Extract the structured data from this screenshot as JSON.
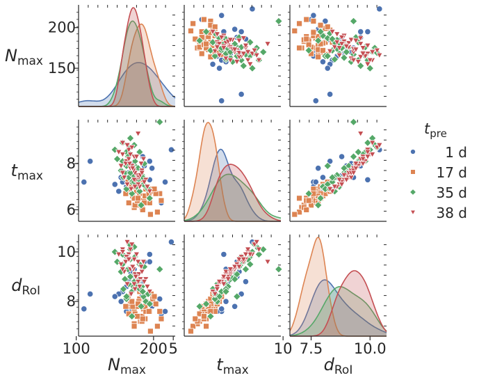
{
  "chart_data": {
    "type": "scatter",
    "variables": [
      {
        "key": "N",
        "label": "N",
        "sub": "max",
        "range": [
          103,
          228
        ],
        "ticks": [
          150,
          200
        ],
        "bottom_ticks": [
          100,
          200
        ]
      },
      {
        "key": "t",
        "label": "t",
        "sub": "max",
        "range": [
          5.5,
          9.9
        ],
        "ticks": [
          6,
          8
        ],
        "bottom_ticks": [
          5,
          10
        ]
      },
      {
        "key": "d",
        "label": "d",
        "sub": "RoI",
        "range": [
          6.6,
          10.7
        ],
        "ticks": [
          8,
          10
        ],
        "bottom_ticks": [
          7.5,
          10.0
        ]
      }
    ],
    "bottom_ticks_display": [
      [
        "100",
        "200"
      ],
      [
        "5",
        "10"
      ],
      [
        "7.5",
        "10.0"
      ]
    ],
    "legend": {
      "title": "t",
      "title_sub": "pre",
      "placement": "right",
      "entries": [
        "1 d",
        "17 d",
        "35 d",
        "38 d"
      ]
    },
    "series": [
      {
        "name": "1 d",
        "marker": "circle",
        "color": "#4C72B0",
        "points": [
          [
            223,
            8.6,
            10.4
          ],
          [
            188,
            7.9,
            9.6
          ],
          [
            175,
            7.4,
            9.3
          ],
          [
            168,
            7.6,
            8.9
          ],
          [
            160,
            7.2,
            8.4
          ],
          [
            183,
            7.1,
            8.1
          ],
          [
            200,
            6.9,
            7.9
          ],
          [
            208,
            6.7,
            8.1
          ],
          [
            210,
            6.3,
            7.5
          ],
          [
            178,
            7.5,
            8.8
          ],
          [
            155,
            6.8,
            8.3
          ],
          [
            165,
            7.4,
            8.6
          ],
          [
            172,
            7.2,
            7.7
          ],
          [
            150,
            7.1,
            8.2
          ],
          [
            195,
            7.3,
            9.9
          ],
          [
            185,
            7.1,
            8.2
          ],
          [
            215,
            7.2,
            7.6
          ],
          [
            170,
            8.0,
            9.2
          ],
          [
            118,
            8.1,
            8.3
          ],
          [
            198,
            7.8,
            7.8
          ],
          [
            180,
            6.9,
            8.5
          ],
          [
            165,
            7.0,
            7.6
          ],
          [
            190,
            6.6,
            8.0
          ],
          [
            176,
            7.9,
            9.0
          ],
          [
            202,
            6.8,
            7.9
          ],
          [
            186,
            8.3,
            8.8
          ],
          [
            158,
            7.4,
            8.0
          ],
          [
            195,
            8.1,
            9.6
          ],
          [
            110,
            7.2,
            7.7
          ]
        ]
      },
      {
        "name": "17 d",
        "marker": "square",
        "color": "#DD8452",
        "points": [
          [
            208,
            6.7,
            7.6
          ],
          [
            191,
            7.0,
            7.9
          ],
          [
            183,
            6.2,
            7.2
          ],
          [
            175,
            6.5,
            7.6
          ],
          [
            168,
            6.9,
            7.8
          ],
          [
            178,
            6.8,
            7.8
          ],
          [
            185,
            6.4,
            7.4
          ],
          [
            190,
            6.6,
            8.0
          ],
          [
            195,
            6.3,
            7.6
          ],
          [
            175,
            6.1,
            7.1
          ],
          [
            168,
            6.3,
            7.5
          ],
          [
            182,
            6.7,
            8.1
          ],
          [
            170,
            7.0,
            7.9
          ],
          [
            189,
            6.5,
            7.3
          ],
          [
            210,
            6.4,
            7.3
          ],
          [
            176,
            6.2,
            7.5
          ],
          [
            197,
            6.8,
            8.3
          ],
          [
            181,
            7.1,
            8.0
          ],
          [
            164,
            6.7,
            7.8
          ],
          [
            205,
            5.9,
            7.0
          ],
          [
            187,
            6.4,
            7.7
          ],
          [
            173,
            6.6,
            7.8
          ],
          [
            199,
            6.9,
            8.1
          ],
          [
            185,
            6.1,
            7.2
          ],
          [
            179,
            6.4,
            7.4
          ],
          [
            190,
            6.9,
            7.6
          ],
          [
            203,
            6.7,
            7.9
          ],
          [
            167,
            7.2,
            8.2
          ],
          [
            188,
            6.3,
            7.8
          ],
          [
            196,
            5.8,
            6.8
          ],
          [
            175,
            6.5,
            7.0
          ],
          [
            182,
            7.3,
            8.4
          ],
          [
            189,
            6.6,
            7.8
          ],
          [
            172,
            7.0,
            8.0
          ],
          [
            201,
            6.9,
            8.2
          ],
          [
            186,
            6.0,
            7.3
          ],
          [
            194,
            6.7,
            7.6
          ],
          [
            180,
            6.5,
            7.9
          ]
        ]
      },
      {
        "name": "35 d",
        "marker": "diamond",
        "color": "#55A868",
        "points": [
          [
            208,
            9.8,
            9.3
          ],
          [
            175,
            8.8,
            10.2
          ],
          [
            170,
            9.1,
            10.1
          ],
          [
            165,
            8.5,
            9.8
          ],
          [
            178,
            7.8,
            9.0
          ],
          [
            185,
            7.5,
            8.6
          ],
          [
            160,
            8.1,
            9.5
          ],
          [
            172,
            7.2,
            8.4
          ],
          [
            190,
            7.0,
            8.0
          ],
          [
            168,
            7.4,
            8.7
          ],
          [
            182,
            6.8,
            8.5
          ],
          [
            153,
            8.2,
            9.6
          ],
          [
            176,
            7.9,
            9.1
          ],
          [
            195,
            6.5,
            7.9
          ],
          [
            163,
            7.6,
            8.9
          ],
          [
            187,
            7.1,
            8.2
          ],
          [
            170,
            8.4,
            9.7
          ],
          [
            158,
            7.7,
            9.2
          ],
          [
            180,
            7.3,
            8.8
          ],
          [
            165,
            6.9,
            8.1
          ],
          [
            174,
            7.5,
            8.6
          ],
          [
            188,
            8.0,
            9.4
          ],
          [
            150,
            8.6,
            10.0
          ],
          [
            172,
            6.7,
            7.4
          ],
          [
            180,
            7.8,
            8.9
          ],
          [
            167,
            8.3,
            9.3
          ],
          [
            193,
            6.9,
            8.3
          ],
          [
            176,
            8.1,
            9.8
          ],
          [
            161,
            7.4,
            8.5
          ],
          [
            184,
            6.2,
            7.8
          ],
          [
            170,
            7.6,
            9.0
          ],
          [
            178,
            7.0,
            8.7
          ],
          [
            169,
            8.7,
            10.3
          ],
          [
            186,
            7.4,
            8.4
          ],
          [
            160,
            8.9,
            9.9
          ],
          [
            175,
            7.2,
            8.8
          ],
          [
            182,
            8.5,
            9.5
          ],
          [
            165,
            7.9,
            8.2
          ]
        ]
      },
      {
        "name": "38 d",
        "marker": "triangle",
        "color": "#C44E52",
        "points": [
          [
            180,
            9.3,
            9.6
          ],
          [
            160,
            8.9,
            10.1
          ],
          [
            168,
            8.6,
            9.9
          ],
          [
            175,
            8.3,
            9.7
          ],
          [
            172,
            7.9,
            9.4
          ],
          [
            185,
            7.7,
            9.2
          ],
          [
            165,
            8.1,
            9.8
          ],
          [
            178,
            7.5,
            9.0
          ],
          [
            190,
            7.3,
            8.9
          ],
          [
            170,
            7.8,
            9.3
          ],
          [
            182,
            7.0,
            8.6
          ],
          [
            160,
            8.4,
            10.0
          ],
          [
            176,
            7.6,
            9.1
          ],
          [
            195,
            6.8,
            8.4
          ],
          [
            164,
            8.0,
            9.6
          ],
          [
            188,
            7.2,
            8.8
          ],
          [
            172,
            8.7,
            10.3
          ],
          [
            158,
            7.9,
            9.5
          ],
          [
            181,
            7.4,
            9.1
          ],
          [
            166,
            7.1,
            8.7
          ],
          [
            174,
            7.7,
            9.3
          ],
          [
            187,
            8.2,
            9.6
          ],
          [
            155,
            8.5,
            9.9
          ],
          [
            171,
            6.9,
            8.3
          ],
          [
            183,
            7.5,
            8.9
          ],
          [
            169,
            8.0,
            9.7
          ],
          [
            192,
            7.0,
            8.6
          ],
          [
            178,
            8.3,
            9.9
          ],
          [
            162,
            7.4,
            9.2
          ],
          [
            180,
            7.1,
            8.8
          ],
          [
            173,
            7.8,
            9.4
          ],
          [
            177,
            7.3,
            9.0
          ],
          [
            166,
            8.8,
            10.4
          ],
          [
            185,
            7.6,
            9.2
          ],
          [
            168,
            8.2,
            9.7
          ],
          [
            176,
            7.0,
            8.5
          ],
          [
            184,
            8.0,
            9.4
          ],
          [
            160,
            7.6,
            9.3
          ],
          [
            175,
            7.3,
            8.7
          ],
          [
            170,
            8.4,
            10.1
          ]
        ]
      }
    ]
  }
}
